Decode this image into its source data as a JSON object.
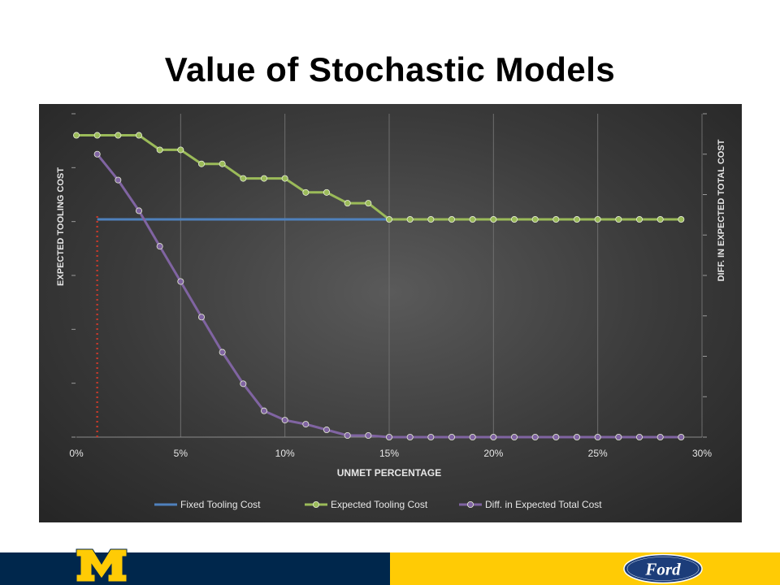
{
  "slide": {
    "title": "Value of Stochastic Models"
  },
  "footer": {
    "left_color": "#00274c",
    "right_color": "#ffcb05",
    "um_logo_icon": "block-m-logo",
    "ford_logo_icon": "ford-oval-logo",
    "ford_logo_text": "Ford"
  },
  "chart_data": {
    "type": "line",
    "xlabel": "UNMET PERCENTAGE",
    "ylabel_left": "EXPECTED TOOLING COST",
    "ylabel_right": "DIFF. IN EXPECTED TOTAL COST",
    "x_tick_labels": [
      "0%",
      "5%",
      "10%",
      "15%",
      "20%",
      "25%",
      "30%"
    ],
    "x_ticks": [
      0,
      5,
      10,
      15,
      20,
      25,
      30
    ],
    "xlim": [
      0,
      30
    ],
    "y_left_ticks": 6,
    "y_right_ticks": 8,
    "grid": "vertical",
    "legend_position": "bottom",
    "y_axes_unlabeled": true,
    "series": [
      {
        "name": "Fixed Tooling Cost",
        "color": "#4f81bd",
        "axis": "left",
        "markers": false,
        "x": [
          1,
          15
        ],
        "y": [
          4.04,
          4.04
        ]
      },
      {
        "name": "Expected Tooling Cost",
        "color": "#9bbb59",
        "axis": "left",
        "markers": true,
        "x": [
          0,
          1,
          2,
          3,
          4,
          5,
          6,
          7,
          8,
          9,
          10,
          11,
          12,
          13,
          14,
          15,
          16,
          17,
          18,
          19,
          20,
          21,
          22,
          23,
          24,
          25,
          26,
          27,
          28,
          29
        ],
        "y": [
          5.6,
          5.6,
          5.6,
          5.6,
          5.33,
          5.33,
          5.07,
          5.07,
          4.8,
          4.8,
          4.8,
          4.54,
          4.54,
          4.34,
          4.34,
          4.04,
          4.04,
          4.04,
          4.04,
          4.04,
          4.04,
          4.04,
          4.04,
          4.04,
          4.04,
          4.04,
          4.04,
          4.04,
          4.04,
          4.04
        ]
      },
      {
        "name": "Diff. in Expected Total Cost",
        "color": "#8064a2",
        "axis": "right",
        "markers": true,
        "x": [
          1,
          2,
          3,
          4,
          5,
          6,
          7,
          8,
          9,
          10,
          11,
          12,
          13,
          14,
          15,
          16,
          17,
          18,
          19,
          20,
          21,
          22,
          23,
          24,
          25,
          26,
          27,
          28,
          29
        ],
        "y": [
          7.0,
          6.36,
          5.6,
          4.72,
          3.85,
          2.97,
          2.1,
          1.32,
          0.65,
          0.42,
          0.32,
          0.18,
          0.04,
          0.04,
          0.0,
          0.0,
          0.0,
          0.0,
          0.0,
          0.0,
          0.0,
          0.0,
          0.0,
          0.0,
          0.0,
          0.0,
          0.0,
          0.0,
          0.0
        ]
      }
    ],
    "reference_line": {
      "x": 1,
      "color": "#c0392b",
      "style": "dotted"
    }
  }
}
